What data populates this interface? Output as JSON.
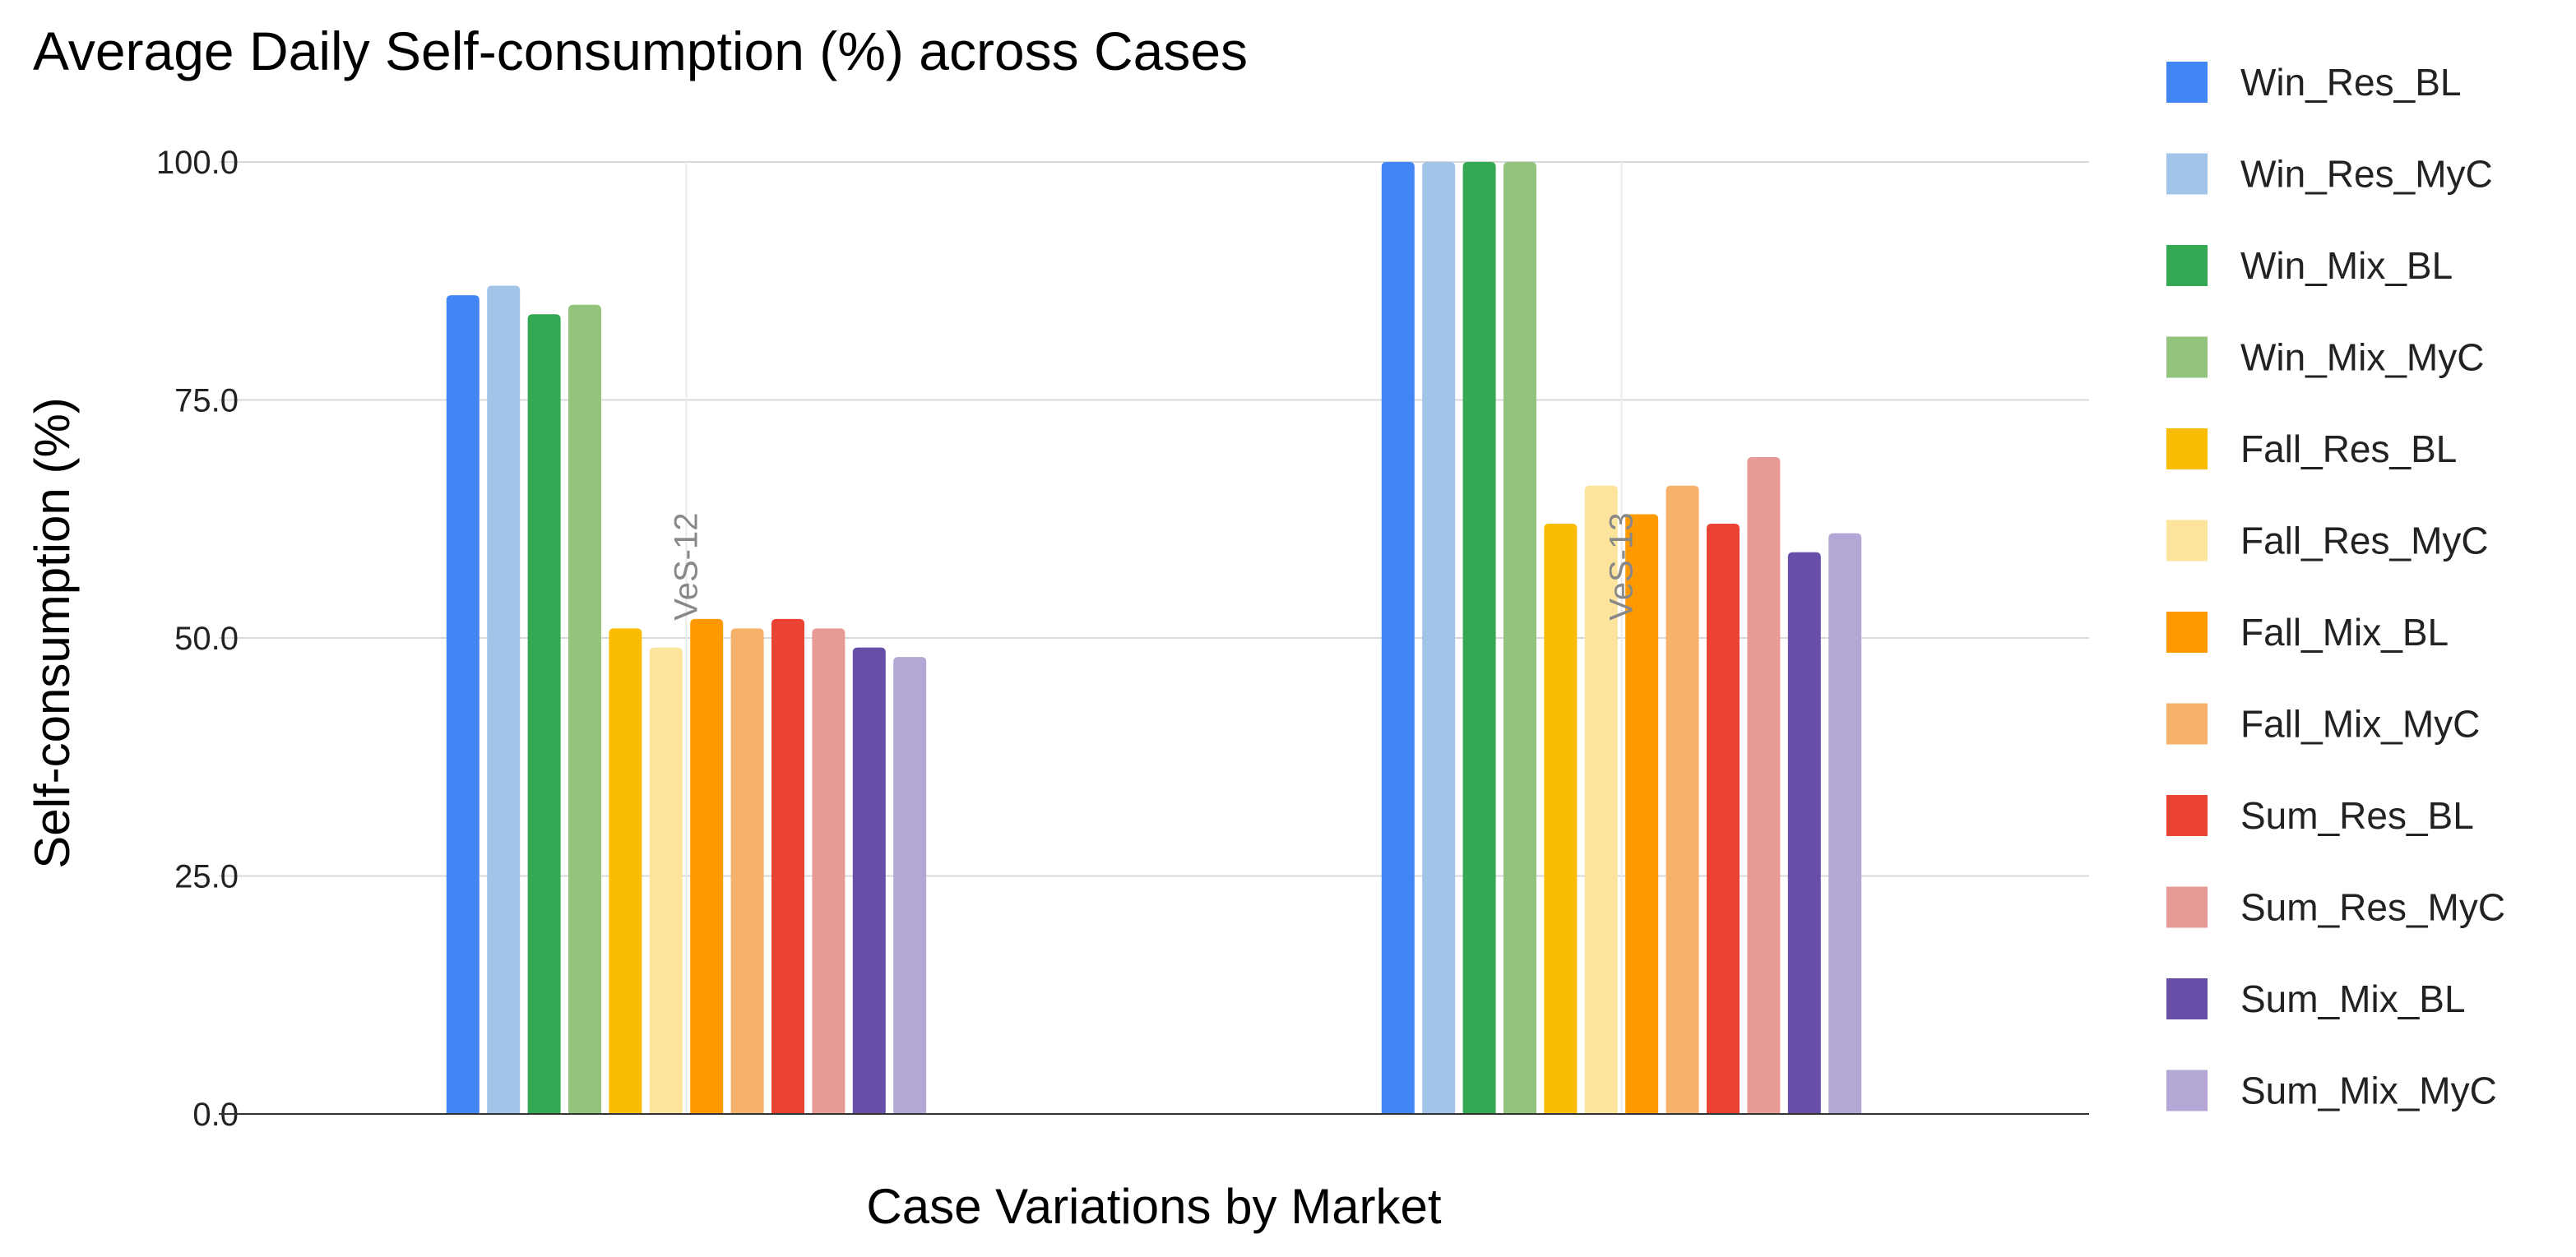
{
  "chart_data": {
    "type": "bar",
    "title": "Average Daily Self-consumption (%) across Cases",
    "xlabel": "Case Variations by Market",
    "ylabel": "Self-consumption (%)",
    "ylim": [
      0,
      100
    ],
    "yticks": [
      "0.0",
      "25.0",
      "50.0",
      "75.0",
      "100.0"
    ],
    "grid": true,
    "legend_position": "right",
    "categories": [
      "VeS-12",
      "VeS-13"
    ],
    "series": [
      {
        "name": "Win_Res_BL",
        "color": "#4285f4",
        "values": [
          86,
          100
        ]
      },
      {
        "name": "Win_Res_MyC",
        "color": "#a1c4e8",
        "values": [
          87,
          100
        ]
      },
      {
        "name": "Win_Mix_BL",
        "color": "#34a853",
        "values": [
          84,
          100
        ]
      },
      {
        "name": "Win_Mix_MyC",
        "color": "#93c47d",
        "values": [
          85,
          100
        ]
      },
      {
        "name": "Fall_Res_BL",
        "color": "#fbbc04",
        "values": [
          51,
          62
        ]
      },
      {
        "name": "Fall_Res_MyC",
        "color": "#fde49c",
        "values": [
          49,
          66
        ]
      },
      {
        "name": "Fall_Mix_BL",
        "color": "#ff9900",
        "values": [
          52,
          63
        ]
      },
      {
        "name": "Fall_Mix_MyC",
        "color": "#f6b26b",
        "values": [
          51,
          66
        ]
      },
      {
        "name": "Sum_Res_BL",
        "color": "#ea4335",
        "values": [
          52,
          62
        ]
      },
      {
        "name": "Sum_Res_MyC",
        "color": "#e89a96",
        "values": [
          51,
          69
        ]
      },
      {
        "name": "Sum_Mix_BL",
        "color": "#674ea7",
        "values": [
          49,
          59
        ]
      },
      {
        "name": "Sum_Mix_MyC",
        "color": "#b4a7d6",
        "values": [
          48,
          61
        ]
      }
    ]
  }
}
